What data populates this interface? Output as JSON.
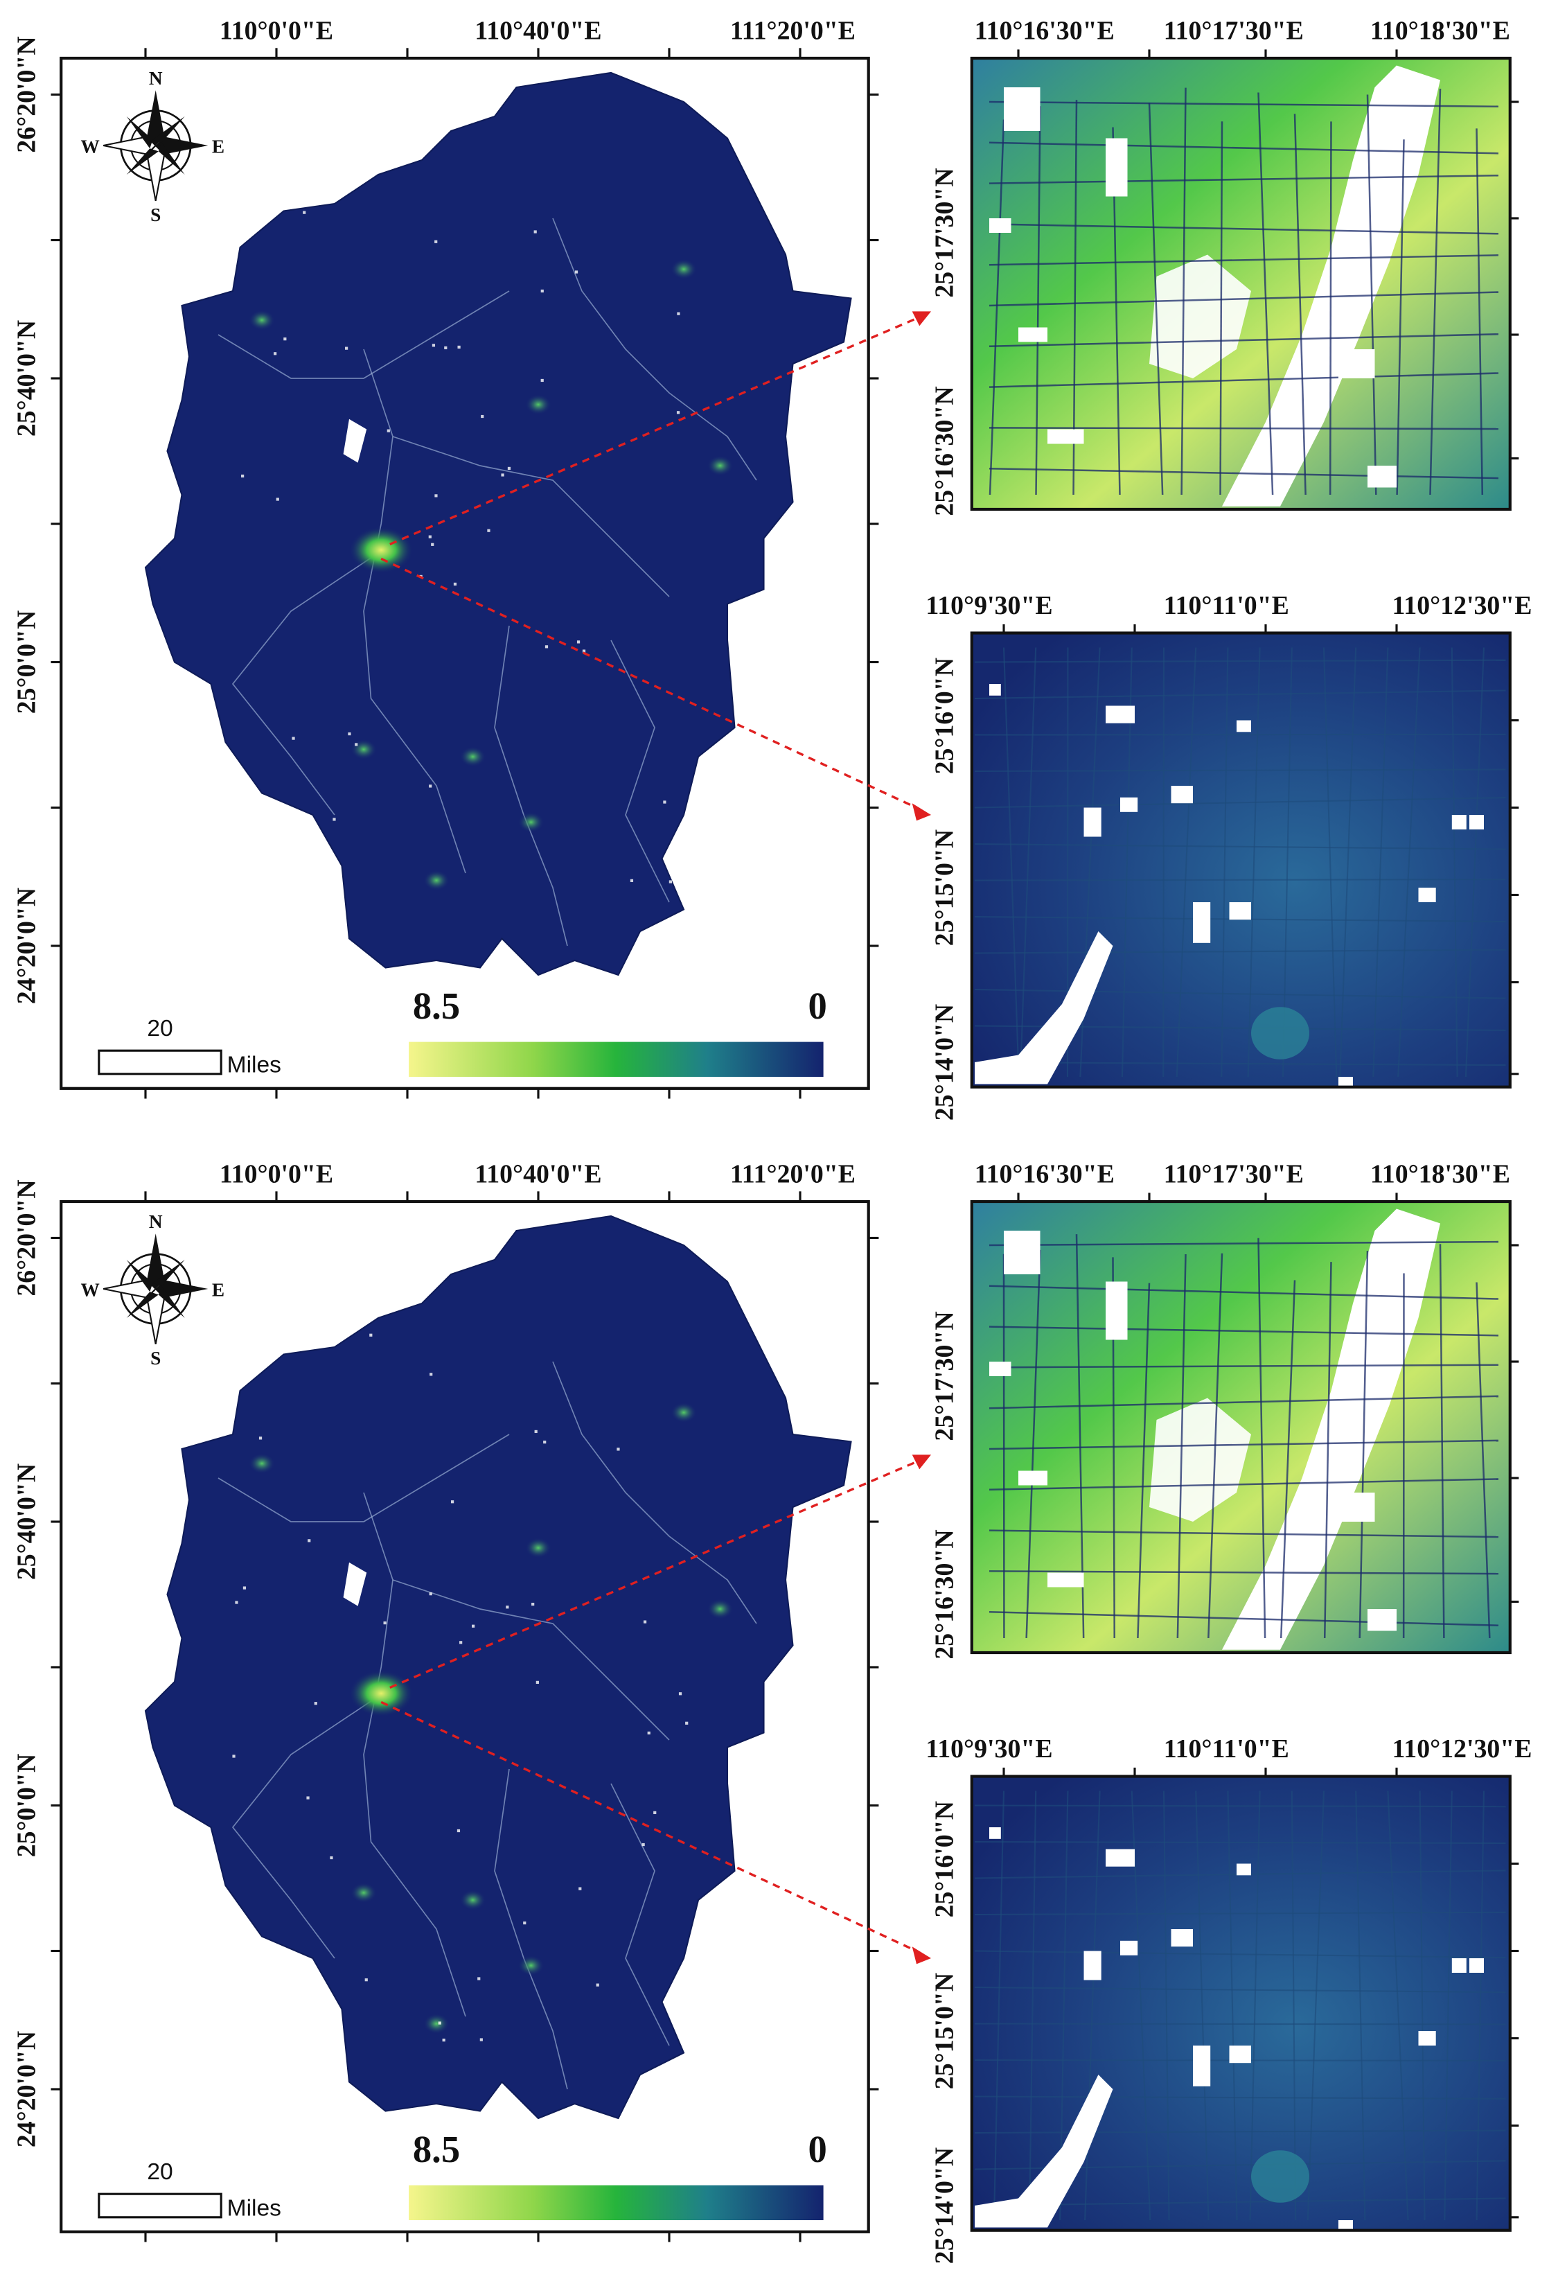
{
  "colors": {
    "low": "#14236e",
    "mid": "#26b43c",
    "high": "#f5f58c",
    "line": "#1a2a6a",
    "arrow": "#e02020"
  },
  "panels": [
    {
      "name": "top",
      "main": {
        "top_ticks": [
          "110°0'0\"E",
          "110°40'0\"E",
          "111°20'0\"E"
        ],
        "left_ticks": [
          "26°20'0\"N",
          "25°40'0\"N",
          "25°0'0\"N",
          "24°20'0\"N"
        ],
        "compass": {
          "n": "N",
          "s": "S",
          "e": "E",
          "w": "W"
        },
        "scalebar": {
          "value": "20",
          "unit": "Miles"
        },
        "legend": {
          "max": "8.5",
          "min": "0"
        }
      },
      "inset1": {
        "top_ticks": [
          "110°16'30\"E",
          "110°17'30\"E",
          "110°18'30\"E"
        ],
        "left_ticks": [
          "25°17'30\"N",
          "25°16'30\"N"
        ]
      },
      "inset2": {
        "top_ticks": [
          "110°9'30\"E",
          "110°11'0\"E",
          "110°12'30\"E"
        ],
        "left_ticks": [
          "25°16'0\"N",
          "25°15'0\"N",
          "25°14'0\"N"
        ]
      }
    },
    {
      "name": "bottom",
      "main": {
        "top_ticks": [
          "110°0'0\"E",
          "110°40'0\"E",
          "111°20'0\"E"
        ],
        "left_ticks": [
          "26°20'0\"N",
          "25°40'0\"N",
          "25°0'0\"N",
          "24°20'0\"N"
        ],
        "compass": {
          "n": "N",
          "s": "S",
          "e": "E",
          "w": "W"
        },
        "scalebar": {
          "value": "20",
          "unit": "Miles"
        },
        "legend": {
          "max": "8.5",
          "min": "0"
        }
      },
      "inset1": {
        "top_ticks": [
          "110°16'30\"E",
          "110°17'30\"E",
          "110°18'30\"E"
        ],
        "left_ticks": [
          "25°17'30\"N",
          "25°16'30\"N"
        ]
      },
      "inset2": {
        "top_ticks": [
          "110°9'30\"E",
          "110°11'0\"E",
          "110°12'30\"E"
        ],
        "left_ticks": [
          "25°16'0\"N",
          "25°15'0\"N",
          "25°14'0\"N"
        ]
      }
    }
  ]
}
